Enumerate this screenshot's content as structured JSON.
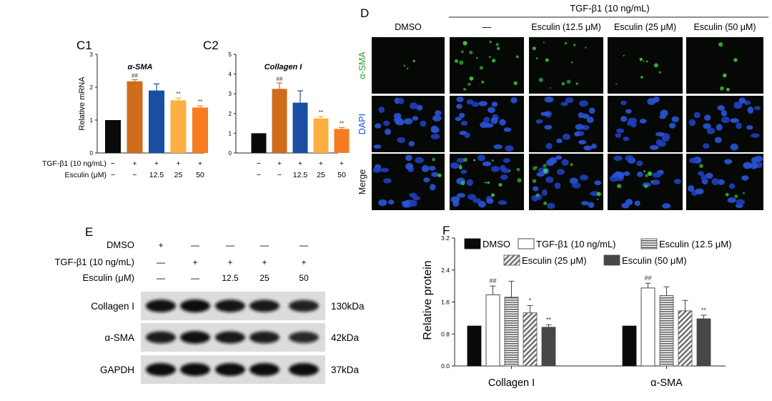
{
  "colors": {
    "c_ctrl": "#0a0a0a",
    "c_tgf": "#cf6d1c",
    "c_e12": "#1a4fa3",
    "c_e25": "#fbb041",
    "c_e50": "#f57c1f",
    "blot_bg": "#dcdcdc",
    "panel_letter": "#1f7fd6",
    "green_label": "#2e9e33",
    "blue_label": "#1f4fd6"
  },
  "c1": {
    "panel_label": "C1",
    "ylabel": "Relative mRNA",
    "row1_label": "TGF-β1 (10 ng/mL)",
    "row2_label": "Esculin (μM)"
  },
  "c2": {
    "panel_label": "C2"
  },
  "treat_rows": {
    "tgf": [
      "−",
      "+",
      "+",
      "+",
      "+"
    ],
    "esc": [
      "−",
      "−",
      "12.5",
      "25",
      "50"
    ]
  },
  "d": {
    "panel_label": "D",
    "group_label": "TGF-β1 (10 ng/mL)",
    "columns": [
      "DMSO",
      "—",
      "Esculin (12.5 μM)",
      "Esculin (25 μM)",
      "Esculin (50 μM)"
    ],
    "rows": [
      "α-SMA",
      "DAPI",
      "Merge"
    ]
  },
  "e": {
    "panel_label": "E",
    "treat_labels": [
      "DMSO",
      "TGF-β1 (10 ng/mL)",
      "Esculin (μM)"
    ],
    "treat_values": [
      [
        "+",
        "—",
        "—",
        "—",
        "—"
      ],
      [
        "—",
        "+",
        "+",
        "+",
        "+"
      ],
      [
        "—",
        "—",
        "12.5",
        "25",
        "50"
      ]
    ],
    "blots": [
      {
        "name": "Collagen I",
        "kda": "130kDa"
      },
      {
        "name": "α-SMA",
        "kda": "42kDa"
      },
      {
        "name": "GAPDH",
        "kda": "37kDa"
      }
    ]
  },
  "f": {
    "panel_label": "F",
    "ylabel": "Relative protein",
    "legend": [
      "DMSO",
      "TGF-β1 (10 ng/mL)",
      "Esculin (12.5 μM)",
      "Esculin (25 μM)",
      "Esculin (50 μM)"
    ]
  },
  "chart_data": [
    {
      "type": "bar",
      "title": "α-SMA",
      "ylabel": "Relative mRNA",
      "ylim": [
        0,
        3
      ],
      "yticks": [
        0,
        1,
        2,
        3
      ],
      "categories": [
        "DMSO",
        "TGF-β1",
        "TGF-β1 + Esculin 12.5 μM",
        "TGF-β1 + Esculin 25 μM",
        "TGF-β1 + Esculin 50 μM"
      ],
      "values": [
        1.0,
        2.18,
        1.9,
        1.6,
        1.38
      ],
      "errors": [
        0,
        0.05,
        0.2,
        0.07,
        0.05
      ],
      "annotations": [
        "",
        "##",
        "",
        "**",
        "**"
      ],
      "colors": [
        "#0a0a0a",
        "#cf6d1c",
        "#1a4fa3",
        "#fbb041",
        "#f57c1f"
      ]
    },
    {
      "type": "bar",
      "title": "Collagen I",
      "ylim": [
        0,
        5
      ],
      "yticks": [
        0,
        1,
        2,
        3,
        4,
        5
      ],
      "categories": [
        "DMSO",
        "TGF-β1",
        "TGF-β1 + Esculin 12.5 μM",
        "TGF-β1 + Esculin 25 μM",
        "TGF-β1 + Esculin 50 μM"
      ],
      "values": [
        1.0,
        3.25,
        2.55,
        1.75,
        1.22
      ],
      "errors": [
        0,
        0.3,
        0.6,
        0.1,
        0.07
      ],
      "annotations": [
        "",
        "##",
        "",
        "**",
        "**"
      ],
      "colors": [
        "#0a0a0a",
        "#cf6d1c",
        "#1a4fa3",
        "#fbb041",
        "#f57c1f"
      ]
    },
    {
      "type": "bar",
      "ylabel": "Relative protein",
      "ylim": [
        0,
        3.2
      ],
      "yticks": [
        "0.0",
        "0.8",
        "1.6",
        "2.4",
        "3.2"
      ],
      "legend_position": "top",
      "categories": [
        "Collagen I",
        "α-SMA"
      ],
      "series": [
        {
          "name": "DMSO",
          "values": [
            1.0,
            1.0
          ],
          "errors": [
            0,
            0
          ],
          "annotations": [
            "",
            ""
          ],
          "style": "solid-black"
        },
        {
          "name": "TGF-β1 (10 ng/mL)",
          "values": [
            1.78,
            1.95
          ],
          "errors": [
            0.22,
            0.12
          ],
          "annotations": [
            "##",
            "##"
          ],
          "style": "white"
        },
        {
          "name": "Esculin (12.5 μM)",
          "values": [
            1.72,
            1.76
          ],
          "errors": [
            0.4,
            0.22
          ],
          "annotations": [
            "",
            ""
          ],
          "style": "horizontal-stripes"
        },
        {
          "name": "Esculin (25 μM)",
          "values": [
            1.33,
            1.38
          ],
          "errors": [
            0.18,
            0.26
          ],
          "annotations": [
            "*",
            ""
          ],
          "style": "diagonal-stripes"
        },
        {
          "name": "Esculin (50 μM)",
          "values": [
            0.97,
            1.18
          ],
          "errors": [
            0.06,
            0.09
          ],
          "annotations": [
            "**",
            "**"
          ],
          "style": "solid-dark-gray"
        }
      ]
    }
  ]
}
